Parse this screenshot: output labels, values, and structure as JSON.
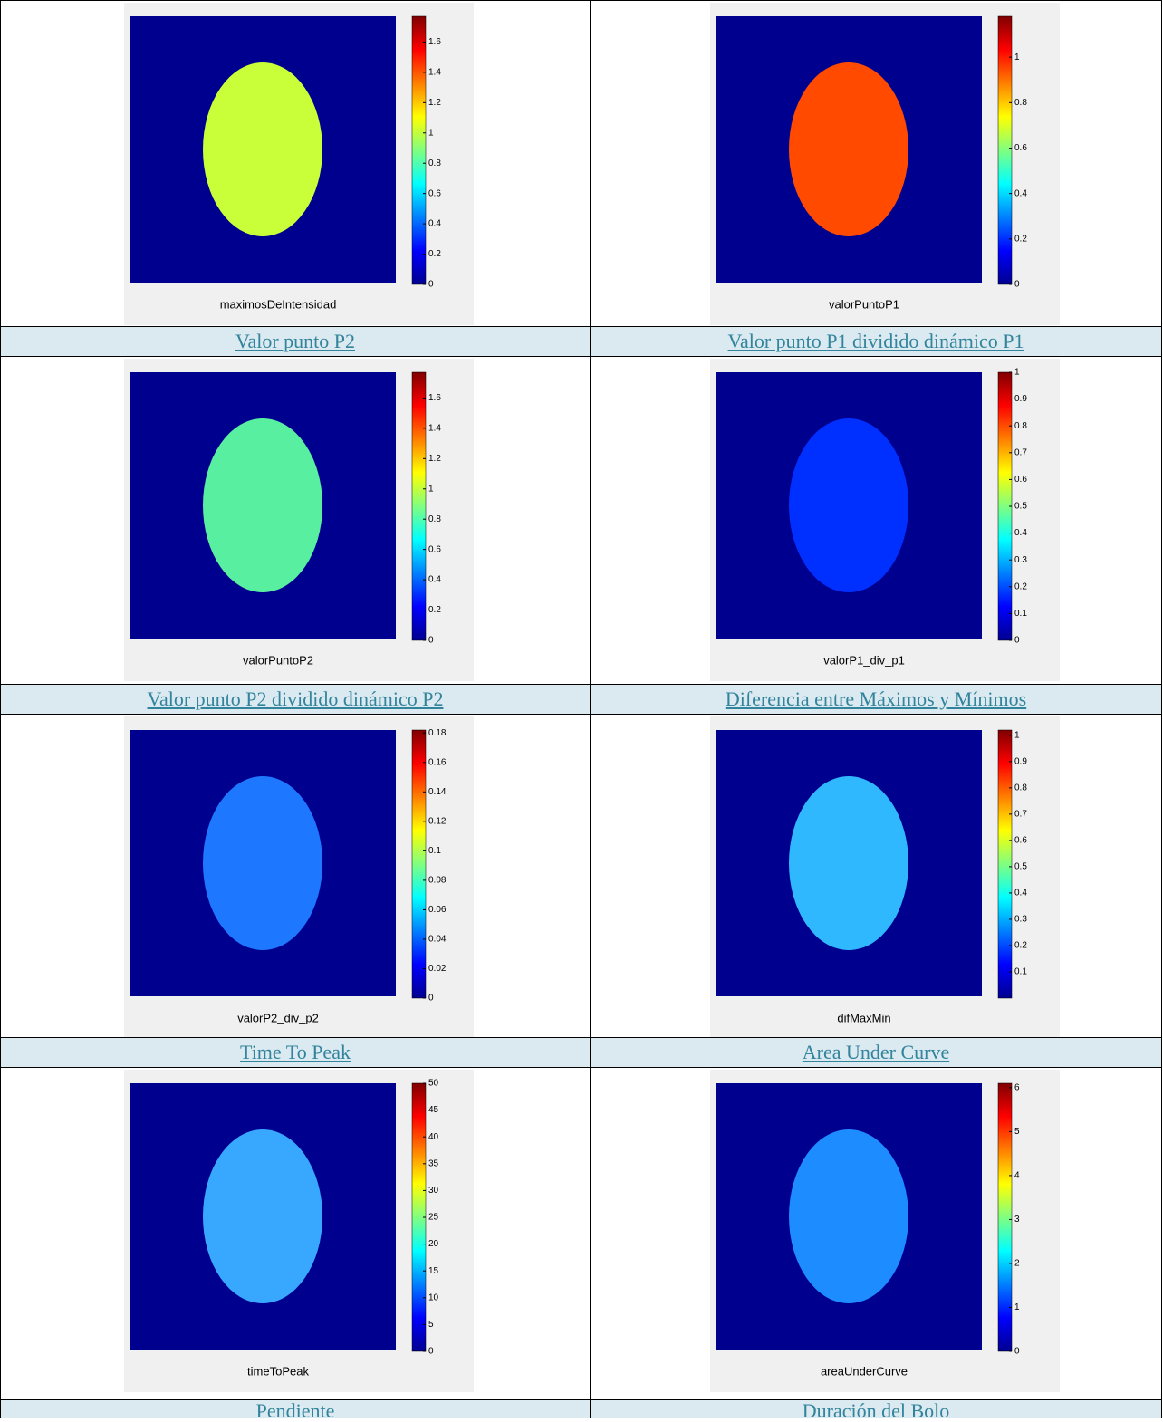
{
  "figures": [
    {
      "title": "maximosDeIntensidad",
      "clim": [
        0,
        1.77
      ],
      "ticks": [
        0,
        0.2,
        0.4,
        0.6,
        0.8,
        1,
        1.2,
        1.4,
        1.6
      ]
    },
    {
      "title": "valorPuntoP1",
      "clim": [
        0,
        1.18
      ],
      "ticks": [
        0,
        0.2,
        0.4,
        0.6,
        0.8,
        1
      ]
    },
    {
      "title": "valorPuntoP2",
      "clim": [
        0,
        1.77
      ],
      "ticks": [
        0,
        0.2,
        0.4,
        0.6,
        0.8,
        1,
        1.2,
        1.4,
        1.6
      ]
    },
    {
      "title": "valorP1_div_p1",
      "clim": [
        0,
        1
      ],
      "ticks": [
        0,
        0.1,
        0.2,
        0.3,
        0.4,
        0.5,
        0.6,
        0.7,
        0.8,
        0.9,
        1
      ]
    },
    {
      "title": "valorP2_div_p2",
      "clim": [
        0,
        0.182
      ],
      "ticks": [
        0,
        0.02,
        0.04,
        0.06,
        0.08,
        0.1,
        0.12,
        0.14,
        0.16,
        0.18
      ]
    },
    {
      "title": "difMaxMin",
      "clim": [
        0,
        1.02
      ],
      "ticks": [
        0.1,
        0.2,
        0.3,
        0.4,
        0.5,
        0.6,
        0.7,
        0.8,
        0.9,
        1
      ]
    },
    {
      "title": "timeToPeak",
      "clim": [
        0,
        50
      ],
      "ticks": [
        0,
        5,
        10,
        15,
        20,
        25,
        30,
        35,
        40,
        45,
        50
      ]
    },
    {
      "title": "areaUnderCurve",
      "clim": [
        0,
        6.1
      ],
      "ticks": [
        0,
        1,
        2,
        3,
        4,
        5,
        6
      ]
    }
  ],
  "headers": [
    [
      "Valor punto P2",
      "Valor punto P1 dividido dinámico P1"
    ],
    [
      "Valor punto P2 dividido dinámico P2",
      "Diferencia entre Máximos y Mínimos"
    ],
    [
      "Time To Peak",
      "Area Under Curve"
    ],
    [
      "Pendiente",
      "Duración del Bolo"
    ]
  ]
}
